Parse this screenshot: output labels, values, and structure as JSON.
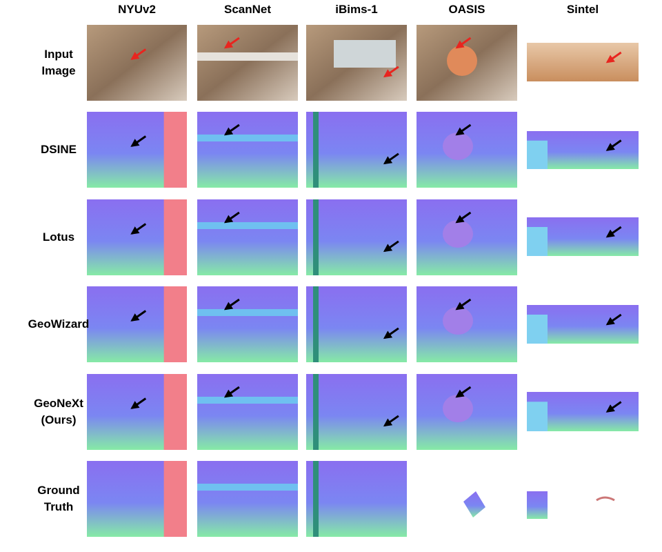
{
  "columns": [
    "NYUv2",
    "ScanNet",
    "iBims-1",
    "OASIS",
    "Sintel"
  ],
  "rows": [
    {
      "label": "Input Image"
    },
    {
      "label": "DSINE"
    },
    {
      "label": "Lotus"
    },
    {
      "label": "GeoWizard"
    },
    {
      "label": "GeoNeXt (Ours)"
    },
    {
      "label": "Ground Truth"
    }
  ]
}
